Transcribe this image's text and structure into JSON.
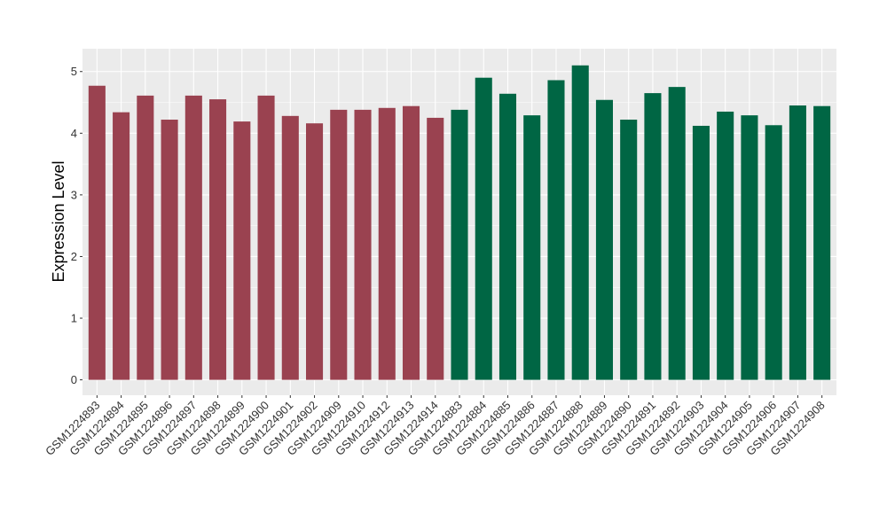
{
  "chart_data": {
    "type": "bar",
    "title": "",
    "xlabel": "",
    "ylabel": "Expression Level",
    "ylim": [
      -0.25,
      5.37
    ],
    "yticks": [
      0,
      1,
      2,
      3,
      4,
      5
    ],
    "grid": true,
    "legend": "none",
    "colors": {
      "group1": "#9a4250",
      "group2": "#006644",
      "panel": "#ebebeb",
      "grid": "#ffffff"
    },
    "categories": [
      "GSM1224893",
      "GSM1224894",
      "GSM1224895",
      "GSM1224896",
      "GSM1224897",
      "GSM1224898",
      "GSM1224899",
      "GSM1224900",
      "GSM1224901",
      "GSM1224902",
      "GSM1224909",
      "GSM1224910",
      "GSM1224912",
      "GSM1224913",
      "GSM1224914",
      "GSM1224883",
      "GSM1224884",
      "GSM1224885",
      "GSM1224886",
      "GSM1224887",
      "GSM1224888",
      "GSM1224889",
      "GSM1224890",
      "GSM1224891",
      "GSM1224892",
      "GSM1224903",
      "GSM1224904",
      "GSM1224905",
      "GSM1224906",
      "GSM1224907",
      "GSM1224908"
    ],
    "values": [
      4.77,
      4.34,
      4.61,
      4.22,
      4.61,
      4.55,
      4.19,
      4.61,
      4.28,
      4.16,
      4.38,
      4.38,
      4.41,
      4.44,
      4.25,
      4.38,
      4.9,
      4.64,
      4.29,
      4.86,
      5.1,
      4.54,
      4.22,
      4.65,
      4.75,
      4.12,
      4.35,
      4.29,
      4.13,
      4.45,
      4.44
    ],
    "groups": [
      "group1",
      "group1",
      "group1",
      "group1",
      "group1",
      "group1",
      "group1",
      "group1",
      "group1",
      "group1",
      "group1",
      "group1",
      "group1",
      "group1",
      "group1",
      "group2",
      "group2",
      "group2",
      "group2",
      "group2",
      "group2",
      "group2",
      "group2",
      "group2",
      "group2",
      "group2",
      "group2",
      "group2",
      "group2",
      "group2",
      "group2"
    ]
  }
}
